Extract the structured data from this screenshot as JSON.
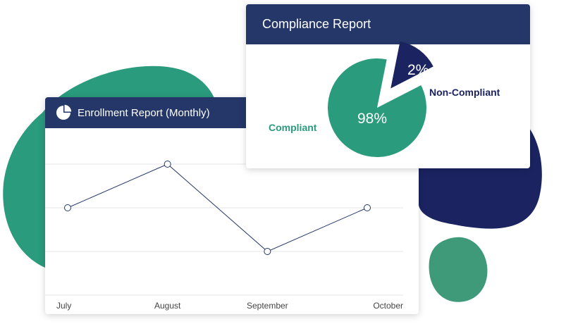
{
  "colors": {
    "navy": "#243768",
    "dark_navy": "#1b2461",
    "green": "#2a9b7c",
    "muted_green": "#3f9a7a",
    "grid": "#e6e6e6",
    "axis_text": "#444444"
  },
  "enrollment_card": {
    "title": "Enrollment Report (Monthly)",
    "icon": "pie-chart-icon"
  },
  "compliance_card": {
    "title": "Compliance Report"
  },
  "chart_data": [
    {
      "type": "line",
      "categories": [
        "July",
        "August",
        "September",
        "October"
      ],
      "series": [
        {
          "values": [
            2,
            3,
            1,
            2
          ]
        }
      ],
      "ylim": [
        0,
        3.5
      ],
      "grid": true
    },
    {
      "type": "pie",
      "labels": [
        "Compliant",
        "Non-Compliant"
      ],
      "values": [
        98,
        2
      ],
      "value_labels": [
        "98%",
        "2%"
      ],
      "colors": [
        "#2a9b7c",
        "#1b2461"
      ],
      "exploded": "Non-Compliant"
    }
  ]
}
